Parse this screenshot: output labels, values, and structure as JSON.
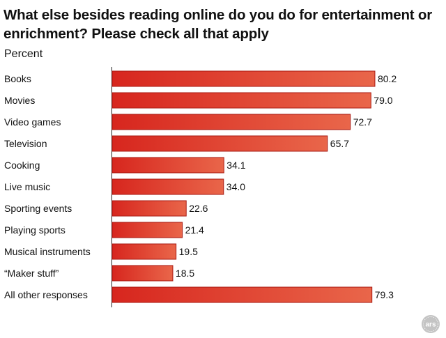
{
  "chart_data": {
    "type": "bar",
    "orientation": "horizontal",
    "title": "What else besides reading online do you do for entertainment or enrichment? Please check all that apply",
    "subtitle": "Percent",
    "categories": [
      "Books",
      "Movies",
      "Video games",
      "Television",
      "Cooking",
      "Live music",
      "Sporting events",
      "Playing sports",
      "Musical instruments",
      "“Maker stuff”",
      "All other responses"
    ],
    "values": [
      80.2,
      79.0,
      72.7,
      65.7,
      34.1,
      34.0,
      22.6,
      21.4,
      19.5,
      18.5,
      79.3
    ],
    "value_labels": [
      "80.2",
      "79.0",
      "72.7",
      "65.7",
      "34.1",
      "34.0",
      "22.6",
      "21.4",
      "19.5",
      "18.5",
      "79.3"
    ],
    "xlim": [
      0,
      100
    ],
    "grid": false,
    "legend": "none",
    "bar_color": "#d7261e",
    "bar_color_light": "#e9664a",
    "bar_border": "#a71811"
  },
  "watermark": {
    "text": "ars",
    "color": "#b5b5b5"
  }
}
